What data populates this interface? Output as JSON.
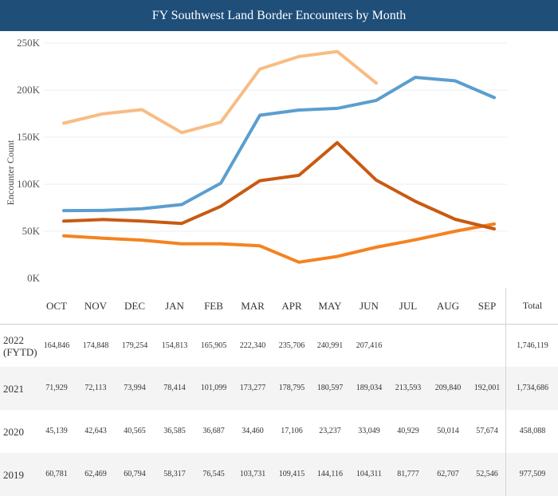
{
  "title": "FY Southwest Land Border Encounters by Month",
  "chart_data": {
    "type": "line",
    "title": "FY Southwest Land Border Encounters by Month",
    "ylabel": "Encounter Count",
    "xlabel": "",
    "ylim": [
      0,
      250000
    ],
    "yticks": [
      {
        "value": 0,
        "label": "0K"
      },
      {
        "value": 50000,
        "label": "50K"
      },
      {
        "value": 100000,
        "label": "100K"
      },
      {
        "value": 150000,
        "label": "150K"
      },
      {
        "value": 200000,
        "label": "200K"
      },
      {
        "value": 250000,
        "label": "250K"
      }
    ],
    "categories": [
      "OCT",
      "NOV",
      "DEC",
      "JAN",
      "FEB",
      "MAR",
      "APR",
      "MAY",
      "JUN",
      "JUL",
      "AUG",
      "SEP"
    ],
    "grid": true,
    "series": [
      {
        "name": "2022 (FYTD)",
        "color": "#f8bc84",
        "values": [
          164846,
          174848,
          179254,
          154813,
          165905,
          222340,
          235706,
          240991,
          207416,
          null,
          null,
          null
        ]
      },
      {
        "name": "2021",
        "color": "#5b9ecf",
        "values": [
          71929,
          72113,
          73994,
          78414,
          101099,
          173277,
          178795,
          180597,
          189034,
          213593,
          209840,
          192001
        ]
      },
      {
        "name": "2020",
        "color": "#f58220",
        "values": [
          45139,
          42643,
          40565,
          36585,
          36687,
          34460,
          17106,
          23237,
          33049,
          40929,
          50014,
          57674
        ]
      },
      {
        "name": "2019",
        "color": "#c85a12",
        "values": [
          60781,
          62469,
          60794,
          58317,
          76545,
          103731,
          109415,
          144116,
          104311,
          81777,
          62707,
          52546
        ]
      }
    ]
  },
  "table": {
    "total_header": "Total",
    "rows": [
      {
        "year_line1": "2022",
        "year_line2": "(FYTD)",
        "cells": [
          "164,846",
          "174,848",
          "179,254",
          "154,813",
          "165,905",
          "222,340",
          "235,706",
          "240,991",
          "207,416",
          "",
          "",
          ""
        ],
        "total": "1,746,119"
      },
      {
        "year_line1": "2021",
        "year_line2": "",
        "cells": [
          "71,929",
          "72,113",
          "73,994",
          "78,414",
          "101,099",
          "173,277",
          "178,795",
          "180,597",
          "189,034",
          "213,593",
          "209,840",
          "192,001"
        ],
        "total": "1,734,686"
      },
      {
        "year_line1": "2020",
        "year_line2": "",
        "cells": [
          "45,139",
          "42,643",
          "40,565",
          "36,585",
          "36,687",
          "34,460",
          "17,106",
          "23,237",
          "33,049",
          "40,929",
          "50,014",
          "57,674"
        ],
        "total": "458,088"
      },
      {
        "year_line1": "2019",
        "year_line2": "",
        "cells": [
          "60,781",
          "62,469",
          "60,794",
          "58,317",
          "76,545",
          "103,731",
          "109,415",
          "144,116",
          "104,311",
          "81,777",
          "62,707",
          "52,546"
        ],
        "total": "977,509"
      }
    ]
  }
}
